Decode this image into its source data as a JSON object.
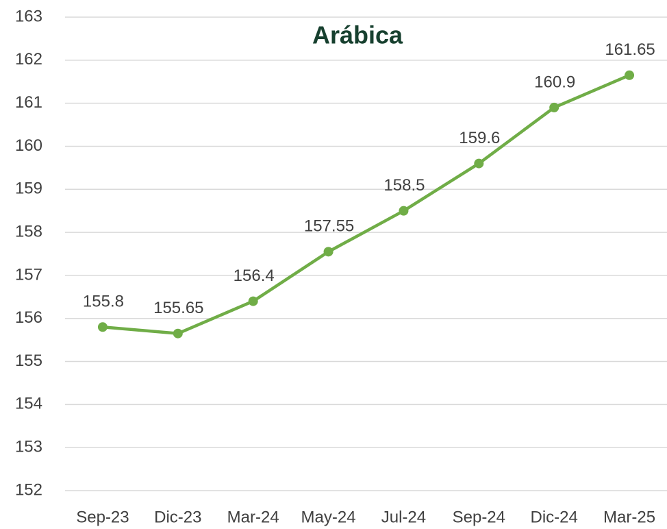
{
  "chart_data": {
    "type": "line",
    "title": "Arábica",
    "categories": [
      "Sep-23",
      "Dic-23",
      "Mar-24",
      "May-24",
      "Jul-24",
      "Sep-24",
      "Dic-24",
      "Mar-25"
    ],
    "values": [
      155.8,
      155.65,
      156.4,
      157.55,
      158.5,
      159.6,
      160.9,
      161.65
    ],
    "color": "#70ad47",
    "ylim": [
      152,
      163
    ],
    "yticks": [
      152,
      153,
      154,
      155,
      156,
      157,
      158,
      159,
      160,
      161,
      162,
      163
    ],
    "grid": true,
    "data_labels": true
  }
}
